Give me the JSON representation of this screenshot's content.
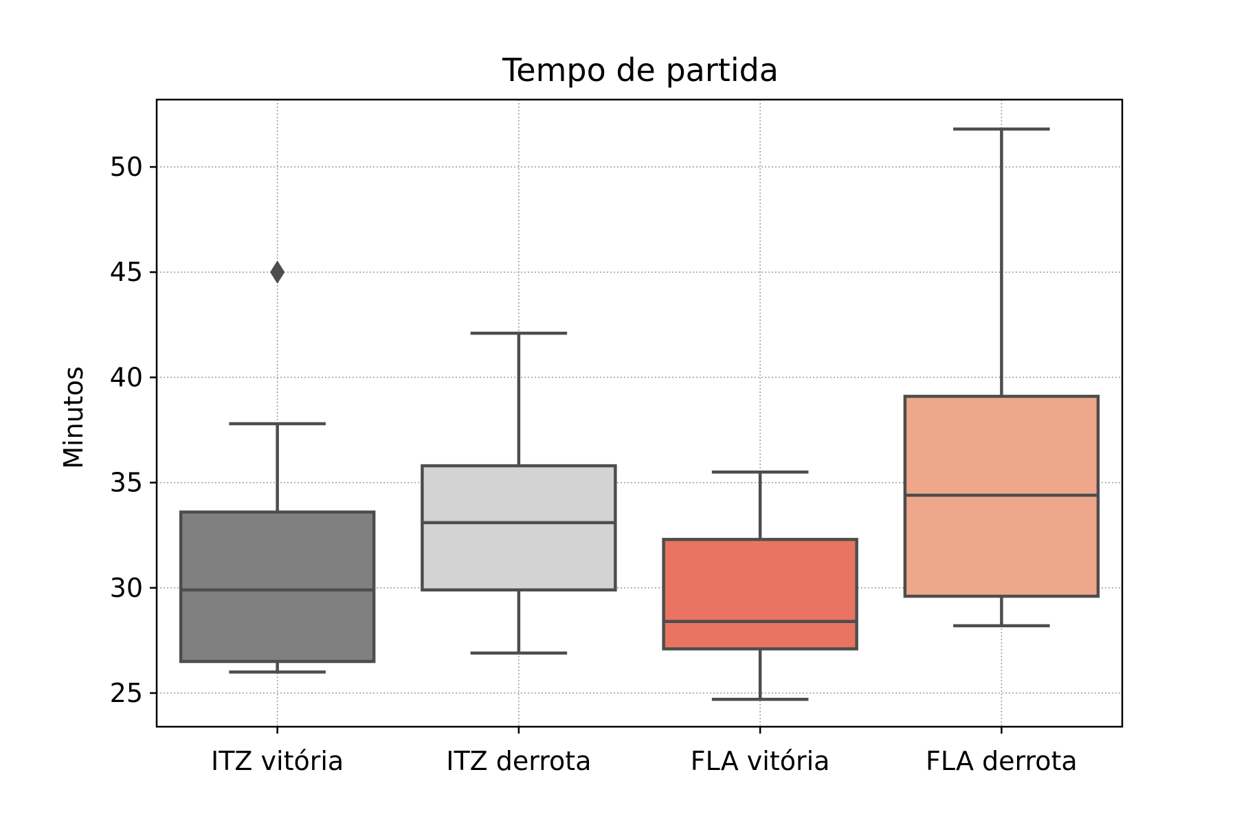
{
  "chart_data": {
    "type": "box",
    "title": "Tempo de partida",
    "xlabel": "",
    "ylabel": "Minutos",
    "categories": [
      "ITZ vitória",
      "ITZ derrota",
      "FLA vitória",
      "FLA derrota"
    ],
    "ylim": [
      23.4,
      53.2
    ],
    "yticks": [
      25,
      30,
      35,
      40,
      45,
      50
    ],
    "grid": true,
    "boxes": [
      {
        "category": "ITZ vitória",
        "whisker_low": 26.0,
        "q1": 26.5,
        "median": 29.9,
        "q3": 33.6,
        "whisker_high": 37.8,
        "outliers": [
          45.0
        ],
        "color": "#808080"
      },
      {
        "category": "ITZ derrota",
        "whisker_low": 26.9,
        "q1": 29.9,
        "median": 33.1,
        "q3": 35.8,
        "whisker_high": 42.1,
        "outliers": [],
        "color": "#d3d3d3"
      },
      {
        "category": "FLA vitória",
        "whisker_low": 24.7,
        "q1": 27.1,
        "median": 28.4,
        "q3": 32.3,
        "whisker_high": 35.5,
        "outliers": [],
        "color": "#e87461"
      },
      {
        "category": "FLA derrota",
        "whisker_low": 28.2,
        "q1": 29.6,
        "median": 34.4,
        "q3": 39.1,
        "whisker_high": 51.8,
        "outliers": [],
        "color": "#eea78a"
      }
    ],
    "line_color": "#4d4d4d"
  }
}
